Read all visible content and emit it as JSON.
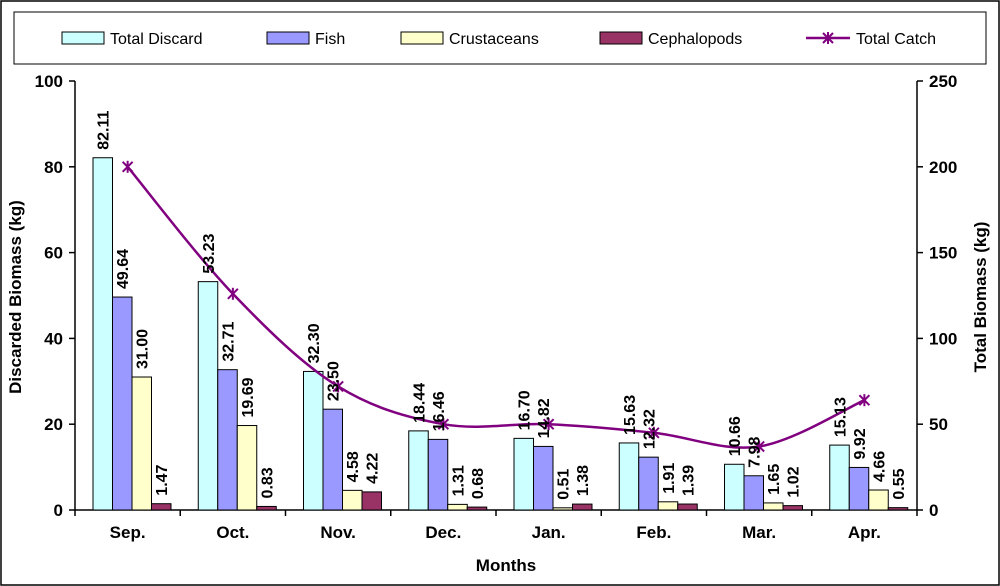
{
  "chart_data": {
    "type": "bar",
    "title": "",
    "xlabel": "Months",
    "ylabel": "Discarded Biomass (kg)",
    "y2label": "Total Biomass (kg)",
    "ylim": [
      0,
      100
    ],
    "y2lim": [
      0,
      250
    ],
    "yticks": [
      "0",
      "20",
      "40",
      "60",
      "80",
      "100"
    ],
    "y2ticks": [
      "0",
      "50",
      "100",
      "150",
      "200",
      "250"
    ],
    "categories": [
      "Sep.",
      "Oct.",
      "Nov.",
      "Dec.",
      "Jan.",
      "Feb.",
      "Mar.",
      "Apr."
    ],
    "legend_position": "top",
    "series": [
      {
        "name": "Total Discard",
        "color": "#ccffff",
        "axis": "left",
        "values": [
          82.11,
          53.23,
          32.3,
          18.44,
          16.7,
          15.63,
          10.66,
          15.13
        ],
        "labels": [
          "82.11",
          "53.23",
          "32.30",
          "18.44",
          "16.70",
          "15.63",
          "10.66",
          "15.13"
        ]
      },
      {
        "name": "Fish",
        "color": "#9999ff",
        "axis": "left",
        "values": [
          49.64,
          32.71,
          23.5,
          16.46,
          14.82,
          12.32,
          7.98,
          9.92
        ],
        "labels": [
          "49.64",
          "32.71",
          "23.50",
          "16.46",
          "14.82",
          "12.32",
          "7.98",
          "9.92"
        ]
      },
      {
        "name": "Crustaceans",
        "color": "#ffffcc",
        "axis": "left",
        "values": [
          31.0,
          19.69,
          4.58,
          1.31,
          0.51,
          1.91,
          1.65,
          4.66
        ],
        "labels": [
          "31.00",
          "19.69",
          "4.58",
          "1.31",
          "0.51",
          "1.91",
          "1.65",
          "4.66"
        ]
      },
      {
        "name": "Cephalopods",
        "color": "#993366",
        "axis": "left",
        "values": [
          1.47,
          0.83,
          4.22,
          0.68,
          1.38,
          1.39,
          1.02,
          0.55
        ],
        "labels": [
          "1.47",
          "0.83",
          "4.22",
          "0.68",
          "1.38",
          "1.39",
          "1.02",
          "0.55"
        ]
      },
      {
        "name": "Total Catch",
        "color": "#800080",
        "axis": "right",
        "line": true,
        "values": [
          200,
          126,
          72,
          50,
          50,
          45,
          37,
          64
        ]
      }
    ]
  }
}
